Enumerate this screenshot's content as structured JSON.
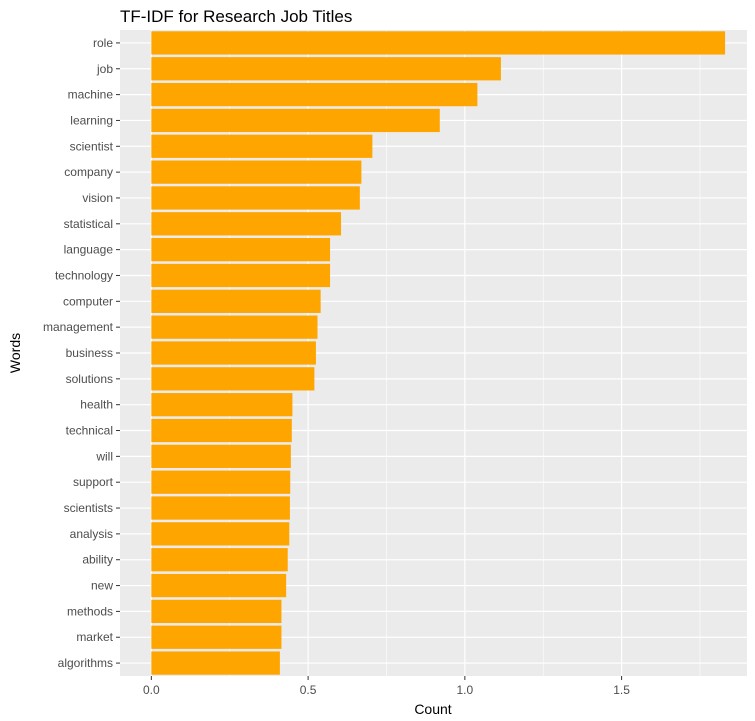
{
  "chart_data": {
    "type": "bar",
    "orientation": "horizontal",
    "title": "TF-IDF for Research Job Titles",
    "xlabel": "Count",
    "ylabel": "Words",
    "categories": [
      "role",
      "job",
      "machine",
      "learning",
      "scientist",
      "company",
      "vision",
      "statistical",
      "language",
      "technology",
      "computer",
      "management",
      "business",
      "solutions",
      "health",
      "technical",
      "will",
      "support",
      "scientists",
      "analysis",
      "ability",
      "new",
      "methods",
      "market",
      "algorithms"
    ],
    "values": [
      1.83,
      1.115,
      1.04,
      0.92,
      0.705,
      0.67,
      0.665,
      0.605,
      0.57,
      0.57,
      0.54,
      0.53,
      0.525,
      0.52,
      0.45,
      0.448,
      0.445,
      0.443,
      0.442,
      0.44,
      0.435,
      0.43,
      0.415,
      0.415,
      0.41
    ],
    "xlim": [
      -0.1,
      1.9
    ],
    "xticks": [
      0,
      0.5,
      1,
      1.5
    ],
    "xtick_labels": [
      "0.0",
      "0.5",
      "1.0",
      "1.5"
    ],
    "grid": true,
    "bar_color": "#FFA500",
    "panel_color": "#EBEBEB",
    "grid_color": "#FFFFFF"
  }
}
